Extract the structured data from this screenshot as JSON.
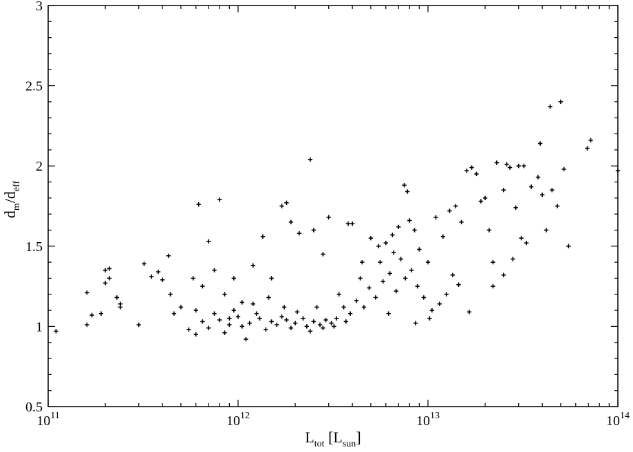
{
  "chart_data": {
    "type": "scatter",
    "title": "",
    "xlabel": {
      "main": "L",
      "sub": "tot",
      "bracket_main": "L",
      "bracket_sub": "sun"
    },
    "ylabel": {
      "main": "d",
      "sub1": "m",
      "slash": "/d",
      "sub2": "eff"
    },
    "x_scale": "log",
    "xlim": [
      100000000000.0,
      100000000000000.0
    ],
    "ylim": [
      0.5,
      3.0
    ],
    "x_ticks": [
      {
        "value": 100000000000.0,
        "base": "10",
        "exp": "11"
      },
      {
        "value": 1000000000000.0,
        "base": "10",
        "exp": "12"
      },
      {
        "value": 10000000000000.0,
        "base": "10",
        "exp": "13"
      },
      {
        "value": 100000000000000.0,
        "base": "10",
        "exp": "14"
      }
    ],
    "y_ticks": [
      {
        "value": 0.5,
        "label": "0.5"
      },
      {
        "value": 1.0,
        "label": "1"
      },
      {
        "value": 1.5,
        "label": "1.5"
      },
      {
        "value": 2.0,
        "label": "2"
      },
      {
        "value": 2.5,
        "label": "2.5"
      },
      {
        "value": 3.0,
        "label": "3"
      }
    ],
    "grid": false,
    "marker": "plus",
    "series": [
      {
        "points": [
          [
            110000000000.0,
            0.97
          ],
          [
            160000000000.0,
            1.21
          ],
          [
            160000000000.0,
            1.01
          ],
          [
            170000000000.0,
            1.07
          ],
          [
            190000000000.0,
            1.08
          ],
          [
            200000000000.0,
            1.35
          ],
          [
            210000000000.0,
            1.36
          ],
          [
            210000000000.0,
            1.3
          ],
          [
            200000000000.0,
            1.27
          ],
          [
            230000000000.0,
            1.18
          ],
          [
            240000000000.0,
            1.14
          ],
          [
            240000000000.0,
            1.12
          ],
          [
            300000000000.0,
            1.01
          ],
          [
            320000000000.0,
            1.39
          ],
          [
            350000000000.0,
            1.31
          ],
          [
            380000000000.0,
            1.34
          ],
          [
            400000000000.0,
            1.29
          ],
          [
            430000000000.0,
            1.44
          ],
          [
            440000000000.0,
            1.2
          ],
          [
            460000000000.0,
            1.08
          ],
          [
            500000000000.0,
            1.12
          ],
          [
            550000000000.0,
            0.98
          ],
          [
            580000000000.0,
            1.3
          ],
          [
            600000000000.0,
            1.1
          ],
          [
            620000000000.0,
            1.76
          ],
          [
            650000000000.0,
            1.25
          ],
          [
            700000000000.0,
            1.53
          ],
          [
            750000000000.0,
            1.35
          ],
          [
            800000000000.0,
            1.79
          ],
          [
            850000000000.0,
            1.2
          ],
          [
            900000000000.0,
            1.05
          ],
          [
            950000000000.0,
            1.3
          ],
          [
            1050000000000.0,
            1.15
          ],
          [
            1200000000000.0,
            1.38
          ],
          [
            1350000000000.0,
            1.56
          ],
          [
            1500000000000.0,
            1.3
          ],
          [
            1700000000000.0,
            1.75
          ],
          [
            1800000000000.0,
            1.77
          ],
          [
            1900000000000.0,
            1.65
          ],
          [
            2100000000000.0,
            1.58
          ],
          [
            2400000000000.0,
            2.04
          ],
          [
            2500000000000.0,
            1.6
          ],
          [
            2800000000000.0,
            1.45
          ],
          [
            3000000000000.0,
            1.68
          ],
          [
            3800000000000.0,
            1.64
          ],
          [
            4000000000000.0,
            1.64
          ],
          [
            4500000000000.0,
            1.4
          ],
          [
            5000000000000.0,
            1.55
          ],
          [
            5500000000000.0,
            1.5
          ],
          [
            6000000000000.0,
            1.52
          ],
          [
            6500000000000.0,
            1.57
          ],
          [
            7000000000000.0,
            1.62
          ],
          [
            7500000000000.0,
            1.88
          ],
          [
            7800000000000.0,
            1.84
          ],
          [
            8000000000000.0,
            1.66
          ],
          [
            8500000000000.0,
            1.6
          ],
          [
            9000000000000.0,
            1.48
          ],
          [
            10000000000000.0,
            1.4
          ],
          [
            11000000000000.0,
            1.68
          ],
          [
            12000000000000.0,
            1.56
          ],
          [
            13000000000000.0,
            1.72
          ],
          [
            14000000000000.0,
            1.75
          ],
          [
            15000000000000.0,
            1.65
          ],
          [
            16000000000000.0,
            1.97
          ],
          [
            17000000000000.0,
            1.99
          ],
          [
            18000000000000.0,
            1.95
          ],
          [
            19000000000000.0,
            1.78
          ],
          [
            20000000000000.0,
            1.8
          ],
          [
            21000000000000.0,
            1.6
          ],
          [
            22000000000000.0,
            1.4
          ],
          [
            23000000000000.0,
            2.02
          ],
          [
            25000000000000.0,
            1.85
          ],
          [
            26000000000000.0,
            2.01
          ],
          [
            27000000000000.0,
            1.99
          ],
          [
            29000000000000.0,
            1.74
          ],
          [
            30000000000000.0,
            2.0
          ],
          [
            31000000000000.0,
            1.55
          ],
          [
            32000000000000.0,
            2.0
          ],
          [
            33000000000000.0,
            1.52
          ],
          [
            38000000000000.0,
            1.93
          ],
          [
            39000000000000.0,
            2.14
          ],
          [
            42000000000000.0,
            1.6
          ],
          [
            44000000000000.0,
            2.37
          ],
          [
            45000000000000.0,
            1.85
          ],
          [
            48000000000000.0,
            1.75
          ],
          [
            50000000000000.0,
            2.4
          ],
          [
            52000000000000.0,
            1.98
          ],
          [
            55000000000000.0,
            1.5
          ],
          [
            69000000000000.0,
            2.11
          ],
          [
            72000000000000.0,
            2.16
          ],
          [
            100000000000000.0,
            1.97
          ],
          [
            16500000000000.0,
            1.09
          ],
          [
            22000000000000.0,
            1.25
          ],
          [
            25000000000000.0,
            1.32
          ],
          [
            28000000000000.0,
            1.42
          ],
          [
            35000000000000.0,
            1.87
          ],
          [
            40000000000000.0,
            1.82
          ],
          [
            14500000000000.0,
            1.26
          ],
          [
            13500000000000.0,
            1.32
          ],
          [
            12500000000000.0,
            1.2
          ],
          [
            11500000000000.0,
            1.14
          ],
          [
            10500000000000.0,
            1.1
          ],
          [
            9500000000000.0,
            1.18
          ],
          [
            8800000000000.0,
            1.25
          ],
          [
            8200000000000.0,
            1.35
          ],
          [
            7600000000000.0,
            1.3
          ],
          [
            7200000000000.0,
            1.42
          ],
          [
            6800000000000.0,
            1.22
          ],
          [
            6300000000000.0,
            1.33
          ],
          [
            5800000000000.0,
            1.28
          ],
          [
            5300000000000.0,
            1.18
          ],
          [
            4900000000000.0,
            1.24
          ],
          [
            4600000000000.0,
            1.12
          ],
          [
            4200000000000.0,
            1.16
          ],
          [
            3900000000000.0,
            1.08
          ],
          [
            3600000000000.0,
            1.12
          ],
          [
            3300000000000.0,
            1.05
          ],
          [
            3100000000000.0,
            1.02
          ],
          [
            2900000000000.0,
            1.04
          ],
          [
            2700000000000.0,
            1.01
          ],
          [
            2500000000000.0,
            1.03
          ],
          [
            2300000000000.0,
            1.0
          ],
          [
            2200000000000.0,
            1.05
          ],
          [
            2000000000000.0,
            1.02
          ],
          [
            1900000000000.0,
            0.99
          ],
          [
            1800000000000.0,
            1.04
          ],
          [
            1700000000000.0,
            1.06
          ],
          [
            1600000000000.0,
            1.01
          ],
          [
            1500000000000.0,
            1.03
          ],
          [
            1400000000000.0,
            0.98
          ],
          [
            1300000000000.0,
            1.05
          ],
          [
            1250000000000.0,
            1.08
          ],
          [
            1150000000000.0,
            1.02
          ],
          [
            1100000000000.0,
            0.92
          ],
          [
            1050000000000.0,
            1.0
          ],
          [
            1000000000000.0,
            1.06
          ],
          [
            950000000000.0,
            1.1
          ],
          [
            900000000000.0,
            1.01
          ],
          [
            850000000000.0,
            0.96
          ],
          [
            800000000000.0,
            1.04
          ],
          [
            750000000000.0,
            1.08
          ],
          [
            700000000000.0,
            0.99
          ],
          [
            650000000000.0,
            1.03
          ],
          [
            600000000000.0,
            0.95
          ],
          [
            2600000000000.0,
            1.12
          ],
          [
            3400000000000.0,
            1.2
          ],
          [
            4400000000000.0,
            1.3
          ],
          [
            5600000000000.0,
            1.4
          ],
          [
            6600000000000.0,
            1.46
          ],
          [
            2400000000000.0,
            0.97
          ],
          [
            2800000000000.0,
            0.99
          ],
          [
            3200000000000.0,
            1.0
          ],
          [
            3700000000000.0,
            1.03
          ],
          [
            1200000000000.0,
            1.14
          ],
          [
            1450000000000.0,
            1.18
          ],
          [
            1750000000000.0,
            1.12
          ],
          [
            2050000000000.0,
            1.09
          ],
          [
            8600000000000.0,
            1.02
          ],
          [
            10200000000000.0,
            1.05
          ],
          [
            6200000000000.0,
            1.08
          ]
        ]
      }
    ]
  }
}
